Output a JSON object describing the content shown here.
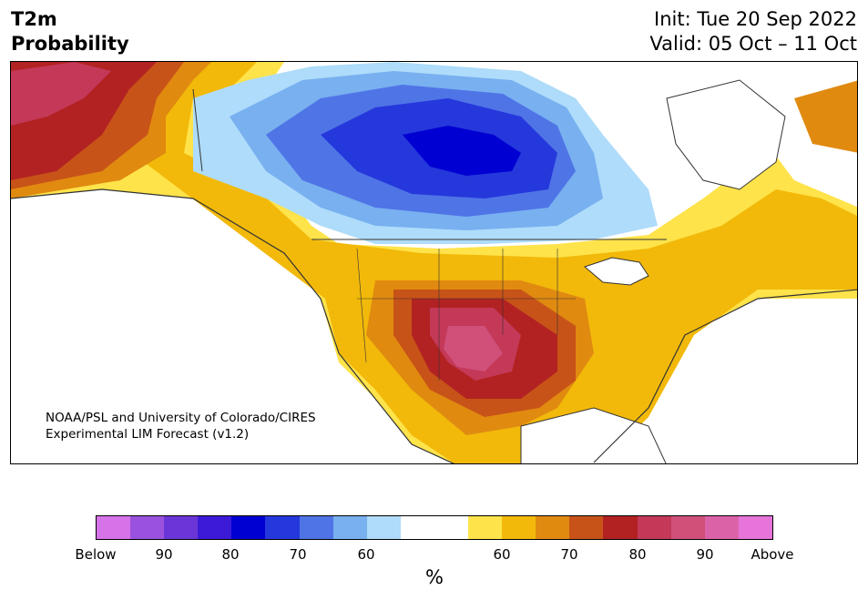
{
  "title": {
    "left_line1": "T2m",
    "left_line2": "Probability",
    "init": "Init: Tue 20 Sep 2022",
    "valid": "Valid: 05 Oct – 11 Oct"
  },
  "credit": {
    "line1": "NOAA/PSL and University of Colorado/CIRES",
    "line2": "Experimental LIM Forecast (v1.2)"
  },
  "colorbar": {
    "unit": "%",
    "colors": [
      "#d773e8",
      "#9a52de",
      "#6b36d8",
      "#3c1ad8",
      "#0000d2",
      "#2538dc",
      "#4f74e6",
      "#78b0f0",
      "#aedcfa",
      "#ffffff",
      "#ffffff",
      "#ffe34a",
      "#f2b90a",
      "#e08a10",
      "#c85318",
      "#b22222",
      "#c43858",
      "#d0507a",
      "#dc62a8",
      "#e674d9"
    ],
    "ticks": [
      "Below",
      "90",
      "80",
      "70",
      "60",
      "60",
      "70",
      "80",
      "90",
      "Above"
    ]
  },
  "legend_colors": {
    "above_high": "#d0507a",
    "above_mid": "#b22222",
    "below_high": "#0000d2",
    "below_mid": "#2538dc"
  }
}
